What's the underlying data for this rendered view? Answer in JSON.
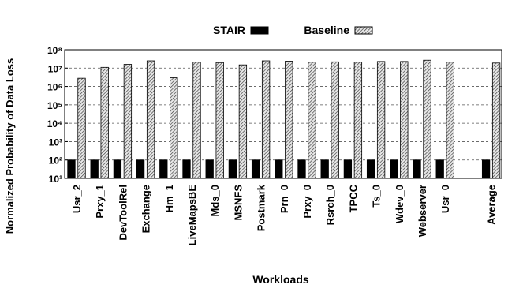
{
  "chart_data": {
    "type": "bar",
    "title": "",
    "xlabel": "Workloads",
    "ylabel": "Normalized Probability of Data Loss",
    "yscale": "log",
    "ylim": [
      10,
      100000000
    ],
    "yticks": [
      {
        "value": 10,
        "label": "10¹"
      },
      {
        "value": 100,
        "label": "10²"
      },
      {
        "value": 1000,
        "label": "10³"
      },
      {
        "value": 10000,
        "label": "10⁴"
      },
      {
        "value": 100000,
        "label": "10⁵"
      },
      {
        "value": 1000000,
        "label": "10⁶"
      },
      {
        "value": 10000000,
        "label": "10⁷"
      },
      {
        "value": 100000000,
        "label": "10⁸"
      }
    ],
    "grid": "horizontal dashed",
    "legend_position": "top",
    "categories": [
      "Usr_2",
      "Prxy_1",
      "DevToolRel",
      "Exchange",
      "Hm_1",
      "LiveMapsBE",
      "Mds_0",
      "MSNFS",
      "Postmark",
      "Prn_0",
      "Prxy_0",
      "Rsrch_0",
      "TPCC",
      "Ts_0",
      "Wdev_0",
      "Webserver",
      "Usr_0",
      "Average"
    ],
    "series": [
      {
        "name": "STAIR",
        "color": "#000000",
        "values": [
          100,
          100,
          100,
          100,
          100,
          100,
          100,
          100,
          100,
          100,
          100,
          100,
          100,
          100,
          100,
          100,
          100,
          100
        ]
      },
      {
        "name": "Baseline",
        "color": "#9a9a9a",
        "pattern": "diagonal hatch",
        "values": [
          2800000,
          11000000,
          16000000,
          25000000,
          3000000,
          21000000,
          20000000,
          15000000,
          25000000,
          24000000,
          21000000,
          22000000,
          21000000,
          23000000,
          23000000,
          27000000,
          21000000,
          19000000
        ]
      }
    ]
  }
}
